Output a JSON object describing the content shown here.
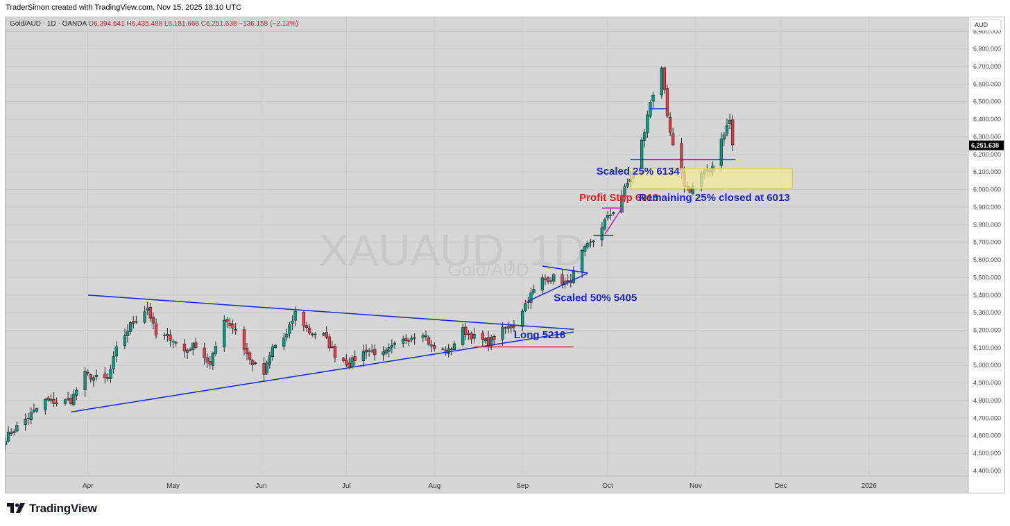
{
  "header": {
    "credit": "TraderSimon created with TradingView.com, Nov 15, 2025 18:10 UTC",
    "symbol_line": "Gold/AUD · 1D · OANDA",
    "ohlc": {
      "o_label": "O",
      "o": "6,394.641",
      "h_label": "H",
      "h": "6,435.488",
      "l_label": "L",
      "l": "6,181.666",
      "c_label": "C",
      "c": "6,251.638",
      "change": "−136.158 (−2.13%)"
    }
  },
  "watermark": {
    "symbol": "XAUAUD, 1D",
    "name": "Gold/AUD"
  },
  "currency_badge": "AUD",
  "last_price_label": "6,251.638",
  "footer": {
    "brand": "TradingView"
  },
  "colors": {
    "bull": "#089981",
    "bear": "#f23645",
    "trendline": "#1c2fd6",
    "stop": "#e31b23",
    "wedge": "#c41fc7",
    "zone": "#f2ea9a",
    "label_blue": "#1a23c7",
    "label_red": "#e01b1b"
  },
  "chart_data": {
    "type": "candlestick",
    "title": "Gold/AUD · 1D · OANDA",
    "xlabel": "",
    "ylabel": "",
    "ylim": [
      4370,
      6980
    ],
    "y_ticks": [
      4400,
      4500,
      4600,
      4700,
      4800,
      4900,
      5000,
      5100,
      5200,
      5300,
      5400,
      5500,
      5600,
      5700,
      5800,
      5900,
      6000,
      6100,
      6200,
      6300,
      6400,
      6500,
      6600,
      6700,
      6800,
      6900
    ],
    "y_tick_labels": [
      "4,400.000",
      "4,500.000",
      "4,600.000",
      "4,700.000",
      "4,800.000",
      "4,900.000",
      "5,000.000",
      "5,100.000",
      "5,200.000",
      "5,300.000",
      "5,400.000",
      "5,500.000",
      "5,600.000",
      "5,700.000",
      "5,800.000",
      "5,900.000",
      "6,000.000",
      "6,100.000",
      "6,200.000",
      "6,300.000",
      "6,400.000",
      "6,500.000",
      "6,600.000",
      "6,700.000",
      "6,800.000",
      "6,900.000"
    ],
    "x_ticks": [
      {
        "label": "Apr",
        "date": "2025-04-01"
      },
      {
        "label": "May",
        "date": "2025-05-01"
      },
      {
        "label": "Jun",
        "date": "2025-06-01"
      },
      {
        "label": "Jul",
        "date": "2025-07-01"
      },
      {
        "label": "Aug",
        "date": "2025-08-01"
      },
      {
        "label": "Sep",
        "date": "2025-09-01"
      },
      {
        "label": "Oct",
        "date": "2025-10-01"
      },
      {
        "label": "Nov",
        "date": "2025-11-01"
      },
      {
        "label": "Dec",
        "date": "2025-12-01"
      },
      {
        "label": "2026",
        "date": "2026-01-01"
      }
    ],
    "x_range": [
      "2025-03-03",
      "2026-02-05"
    ],
    "last_price": 6251.638,
    "anchors": [
      [
        "2025-03-03",
        4590
      ],
      [
        "2025-03-07",
        4650
      ],
      [
        "2025-03-12",
        4720
      ],
      [
        "2025-03-17",
        4800
      ],
      [
        "2025-03-21",
        4790
      ],
      [
        "2025-03-26",
        4800
      ],
      [
        "2025-03-31",
        4950
      ],
      [
        "2025-04-03",
        4930
      ],
      [
        "2025-04-08",
        4920
      ],
      [
        "2025-04-11",
        5090
      ],
      [
        "2025-04-16",
        5230
      ],
      [
        "2025-04-22",
        5330
      ],
      [
        "2025-04-25",
        5170
      ],
      [
        "2025-04-30",
        5160
      ],
      [
        "2025-05-05",
        5080
      ],
      [
        "2025-05-09",
        5120
      ],
      [
        "2025-05-14",
        5000
      ],
      [
        "2025-05-19",
        5270
      ],
      [
        "2025-05-23",
        5200
      ],
      [
        "2025-05-28",
        5030
      ],
      [
        "2025-06-02",
        4950
      ],
      [
        "2025-06-05",
        5100
      ],
      [
        "2025-06-10",
        5170
      ],
      [
        "2025-06-13",
        5300
      ],
      [
        "2025-06-18",
        5190
      ],
      [
        "2025-06-23",
        5170
      ],
      [
        "2025-06-27",
        5060
      ],
      [
        "2025-07-02",
        5010
      ],
      [
        "2025-07-08",
        5090
      ],
      [
        "2025-07-14",
        5060
      ],
      [
        "2025-07-18",
        5110
      ],
      [
        "2025-07-23",
        5160
      ],
      [
        "2025-07-28",
        5190
      ],
      [
        "2025-07-31",
        5100
      ],
      [
        "2025-08-06",
        5080
      ],
      [
        "2025-08-11",
        5200
      ],
      [
        "2025-08-15",
        5160
      ],
      [
        "2025-08-20",
        5130
      ],
      [
        "2025-08-25",
        5200
      ],
      [
        "2025-08-29",
        5230
      ],
      [
        "2025-09-03",
        5380
      ],
      [
        "2025-09-08",
        5490
      ],
      [
        "2025-09-12",
        5500
      ],
      [
        "2025-09-17",
        5460
      ],
      [
        "2025-09-19",
        5520
      ],
      [
        "2025-09-22",
        5640
      ],
      [
        "2025-09-26",
        5710
      ],
      [
        "2025-09-30",
        5820
      ],
      [
        "2025-10-03",
        5880
      ],
      [
        "2025-10-07",
        6000
      ],
      [
        "2025-10-10",
        6100
      ],
      [
        "2025-10-14",
        6330
      ],
      [
        "2025-10-16",
        6500
      ],
      [
        "2025-10-20",
        6700
      ],
      [
        "2025-10-22",
        6400
      ],
      [
        "2025-10-24",
        6240
      ],
      [
        "2025-10-28",
        6030
      ],
      [
        "2025-10-30",
        6000
      ],
      [
        "2025-11-03",
        6090
      ],
      [
        "2025-11-06",
        6100
      ],
      [
        "2025-11-10",
        6290
      ],
      [
        "2025-11-13",
        6395
      ],
      [
        "2025-11-14",
        6252
      ]
    ],
    "annotations": [
      {
        "text": "Long 5216",
        "color": "blue"
      },
      {
        "text": "Scaled 50% 5405",
        "color": "blue"
      },
      {
        "text": "Scaled 25% 6134",
        "color": "blue"
      },
      {
        "text": "Profit Stop 6013",
        "color": "red"
      },
      {
        "text": "Remaining 25% closed at 6013",
        "color": "blue"
      }
    ]
  }
}
